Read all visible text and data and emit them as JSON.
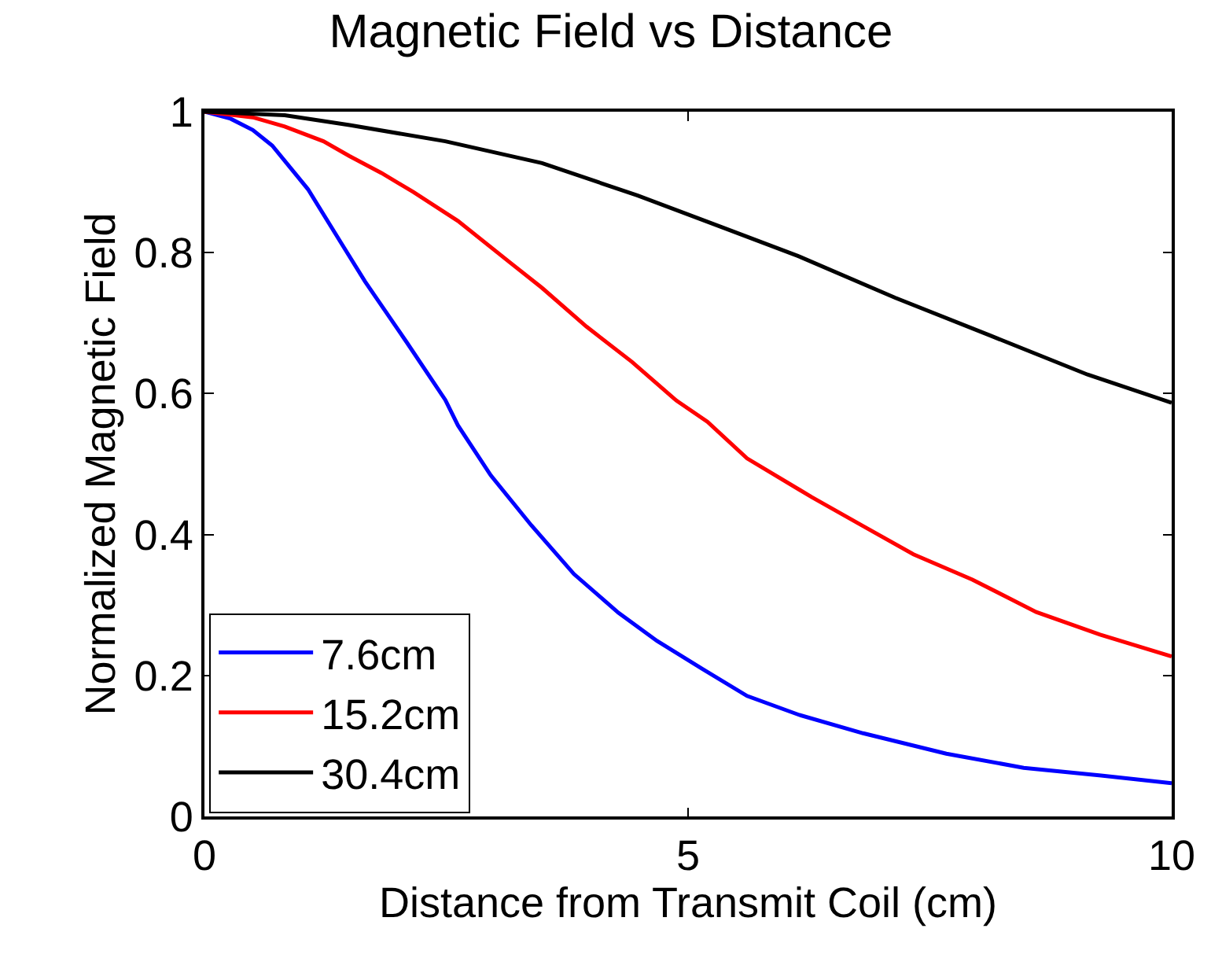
{
  "chart_data": {
    "type": "line",
    "title": "Magnetic Field vs Distance",
    "xlabel": "Distance from Transmit Coil (cm)",
    "ylabel": "Normalized Magnetic Field",
    "xlim": [
      0,
      10
    ],
    "xticks": [
      0,
      5,
      10
    ],
    "ylim": [
      0,
      1
    ],
    "yticks": [
      0,
      0.2,
      0.4,
      0.6,
      0.8,
      1
    ],
    "grid": false,
    "legend": "bottom left",
    "marker": "none",
    "line_style": "solid",
    "series": [
      {
        "name": "7.6cm",
        "color": "#0000ff",
        "x": [
          0,
          0.27,
          0.5,
          0.7,
          1.07,
          1.43,
          1.66,
          2.09,
          2.49,
          2.62,
          2.96,
          3.38,
          3.82,
          4.28,
          4.68,
          5.15,
          5.61,
          6.15,
          6.81,
          7.67,
          8.47,
          9.27,
          10
        ],
        "values": [
          1,
          0.99,
          0.974,
          0.952,
          0.89,
          0.81,
          0.759,
          0.673,
          0.591,
          0.555,
          0.484,
          0.413,
          0.344,
          0.289,
          0.249,
          0.209,
          0.171,
          0.144,
          0.118,
          0.089,
          0.069,
          0.058,
          0.047
        ]
      },
      {
        "name": "15.2cm",
        "color": "#ff0000",
        "x": [
          0,
          0.5,
          0.83,
          1.23,
          1.5,
          1.83,
          2.16,
          2.62,
          3.15,
          3.49,
          3.95,
          4.42,
          4.88,
          5.2,
          5.61,
          6.28,
          6.81,
          7.33,
          7.94,
          8.6,
          9.26,
          10
        ],
        "values": [
          1,
          0.992,
          0.979,
          0.958,
          0.937,
          0.913,
          0.886,
          0.845,
          0.787,
          0.75,
          0.695,
          0.645,
          0.59,
          0.56,
          0.508,
          0.453,
          0.412,
          0.372,
          0.336,
          0.29,
          0.258,
          0.227
        ]
      },
      {
        "name": "30.4cm",
        "color": "#000000",
        "x": [
          0,
          0.83,
          1.5,
          2.49,
          3.49,
          4.48,
          5.35,
          6.14,
          7.14,
          8.13,
          9.13,
          10
        ],
        "values": [
          1,
          0.995,
          0.981,
          0.958,
          0.927,
          0.881,
          0.836,
          0.795,
          0.736,
          0.682,
          0.627,
          0.587
        ]
      }
    ]
  }
}
